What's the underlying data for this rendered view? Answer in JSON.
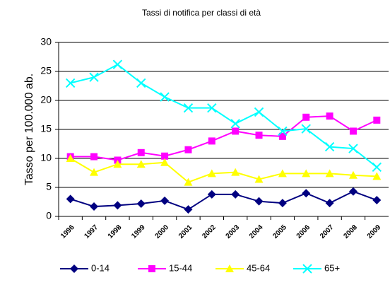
{
  "chart_data": {
    "type": "line",
    "title": "Tassi di notifica per classi di età",
    "y_label": "Tasso per 100.000 ab.",
    "categories": [
      "1996",
      "1997",
      "1998",
      "1999",
      "2000",
      "2001",
      "2002",
      "2003",
      "2004",
      "2005",
      "2006",
      "2007",
      "2008",
      "2009"
    ],
    "series": [
      {
        "name": "0-14",
        "color": "#000080",
        "marker": "diamond",
        "values": [
          3.0,
          1.7,
          1.9,
          2.2,
          2.7,
          1.2,
          3.8,
          3.8,
          2.6,
          2.3,
          4.0,
          2.3,
          4.3,
          2.8
        ]
      },
      {
        "name": "15-44",
        "color": "#ff00ff",
        "marker": "square",
        "values": [
          10.3,
          10.3,
          9.7,
          11.0,
          10.4,
          11.5,
          13.0,
          14.7,
          14.0,
          13.8,
          17.1,
          17.3,
          14.7,
          16.6
        ]
      },
      {
        "name": "45-64",
        "color": "#ffff00",
        "marker": "triangle",
        "values": [
          10.0,
          7.6,
          9.0,
          9.0,
          9.3,
          5.9,
          7.4,
          7.6,
          6.4,
          7.4,
          7.4,
          7.4,
          7.1,
          6.9
        ]
      },
      {
        "name": "65+",
        "color": "#00ffff",
        "marker": "x",
        "values": [
          23.0,
          24.0,
          26.2,
          23.0,
          20.6,
          18.7,
          18.7,
          16.0,
          18.0,
          14.7,
          15.1,
          12.0,
          11.7,
          8.5
        ]
      }
    ],
    "ylim": [
      0,
      30
    ],
    "yticks": [
      0,
      5,
      10,
      15,
      20,
      25,
      30
    ],
    "grid": true
  }
}
